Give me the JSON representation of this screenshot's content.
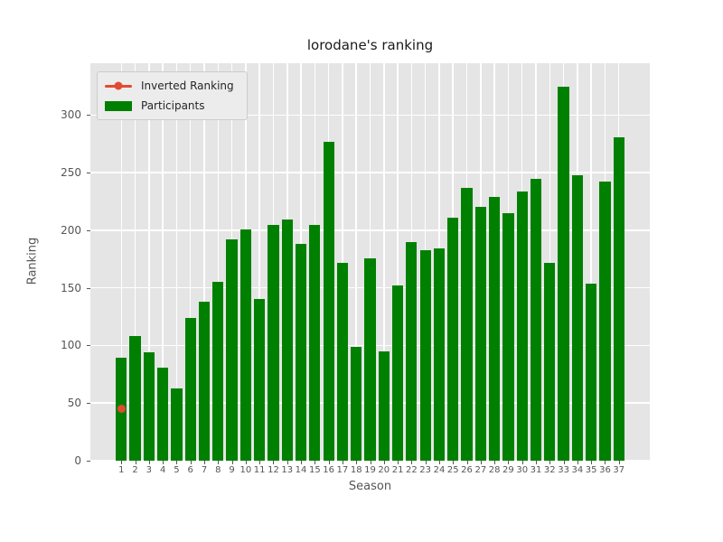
{
  "title": "lorodane's ranking",
  "xlabel": "Season",
  "ylabel": "Ranking",
  "legend": {
    "items": [
      {
        "label": "Inverted Ranking",
        "marker": "line-dot",
        "color": "#e24a33"
      },
      {
        "label": "Participants",
        "marker": "patch",
        "color": "#008000"
      }
    ]
  },
  "colors": {
    "figure_bg": "#ffffff",
    "axes_bg": "#e5e5e5",
    "grid": "#ffffff",
    "bar": "#008000",
    "marker": "#e24a33",
    "tick_text": "#555555",
    "title_text": "#1a1a1a",
    "legend_bg": "#ececec",
    "legend_border": "#cccccc"
  },
  "chart_data": {
    "type": "bar",
    "style": "ggplot",
    "title": "lorodane's ranking",
    "xlabel": "Season",
    "ylabel": "Ranking",
    "categories": [
      1,
      2,
      3,
      4,
      5,
      6,
      7,
      8,
      9,
      10,
      11,
      12,
      13,
      14,
      15,
      16,
      17,
      18,
      19,
      20,
      21,
      22,
      23,
      24,
      25,
      26,
      27,
      28,
      29,
      30,
      31,
      32,
      33,
      34,
      35,
      36,
      37
    ],
    "series": [
      {
        "name": "Inverted Ranking",
        "type": "scatter",
        "color": "#e24a33",
        "points": [
          {
            "x": 1,
            "y": 45
          }
        ]
      },
      {
        "name": "Participants",
        "type": "bar",
        "color": "#008000",
        "values": [
          89,
          108,
          94,
          81,
          63,
          124,
          138,
          155,
          192,
          201,
          140,
          205,
          209,
          188,
          205,
          277,
          172,
          99,
          176,
          95,
          152,
          190,
          183,
          184,
          211,
          237,
          220,
          229,
          215,
          234,
          245,
          172,
          325,
          248,
          154,
          242,
          281
        ]
      }
    ],
    "yticks": [
      0,
      50,
      100,
      150,
      200,
      250,
      300
    ],
    "ylim": [
      0,
      345
    ],
    "bar_width_ratio": 0.8,
    "grid": true,
    "legend_position": "upper left"
  }
}
